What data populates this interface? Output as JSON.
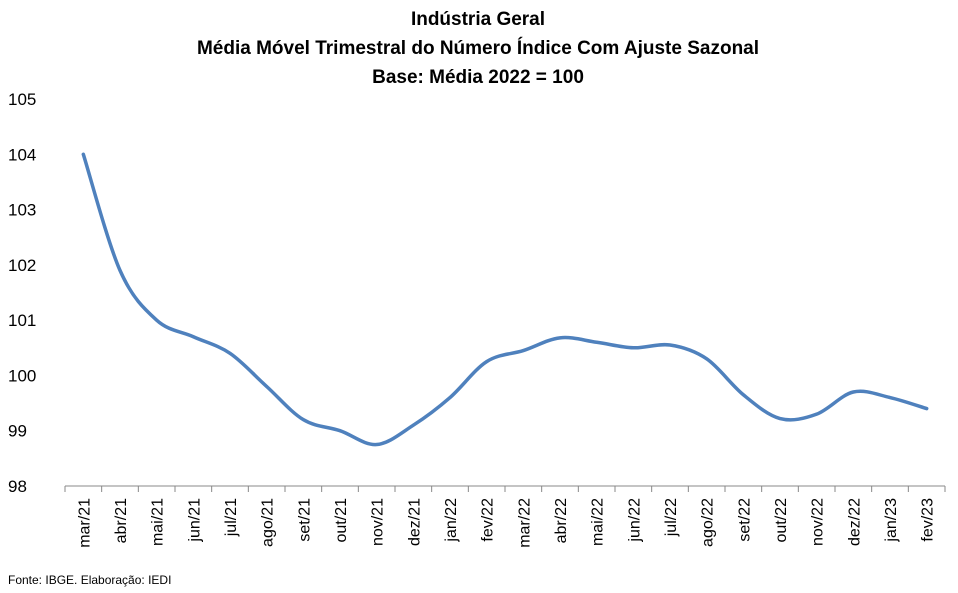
{
  "chart_data": {
    "type": "line",
    "title": "Indústria Geral",
    "subtitle": "Média Móvel Trimestral do Número Índice Com Ajuste Sazonal",
    "subtitle2": "Base: Média 2022 = 100",
    "xlabel": "",
    "ylabel": "",
    "ylim": [
      98,
      105
    ],
    "yticks": [
      "98",
      "99",
      "100",
      "101",
      "102",
      "103",
      "104",
      "105"
    ],
    "grid": false,
    "categories": [
      "mar/21",
      "abr/21",
      "mai/21",
      "jun/21",
      "jul/21",
      "ago/21",
      "set/21",
      "out/21",
      "nov/21",
      "dez/21",
      "jan/22",
      "fev/22",
      "mar/22",
      "abr/22",
      "mai/22",
      "jun/22",
      "jul/22",
      "ago/22",
      "set/22",
      "out/22",
      "nov/22",
      "dez/22",
      "jan/23",
      "fev/23"
    ],
    "series": [
      {
        "values": [
          104.0,
          101.9,
          101.0,
          100.7,
          100.4,
          99.8,
          99.2,
          99.0,
          98.75,
          99.1,
          99.6,
          100.25,
          100.45,
          100.68,
          100.6,
          100.5,
          100.55,
          100.3,
          99.65,
          99.22,
          99.3,
          99.7,
          99.6,
          99.4
        ],
        "color": "#4f81bd"
      }
    ]
  },
  "footer": {
    "source": "Fonte: IBGE. Elaboração: IEDI"
  }
}
